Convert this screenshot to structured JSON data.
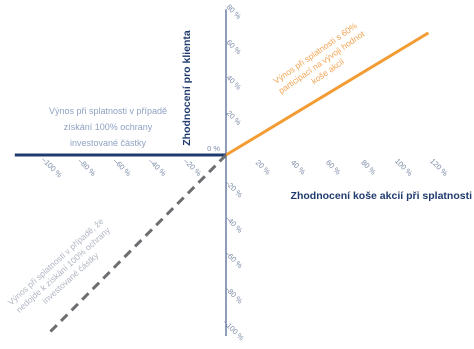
{
  "chart_data": {
    "type": "line",
    "xlabel": "Zhodnocení koše akcií při splatnosti",
    "ylabel": "Zhodnocení pro klienta",
    "xlim": [
      -120,
      120
    ],
    "ylim": [
      -100,
      80
    ],
    "x_ticks": [
      "–100 %",
      "–80 %",
      "–60 %",
      "–40 %",
      "–20 %",
      "20 %",
      "40 %",
      "60 %",
      "80 %",
      "100 %",
      "120 %"
    ],
    "y_ticks": [
      "80 %",
      "60 %",
      "40 %",
      "20 %",
      "0 %",
      "–20 %",
      "–40 %",
      "–60 %",
      "–80 %",
      "–100 %"
    ],
    "x_tick_values": [
      -100,
      -80,
      -60,
      -40,
      -20,
      20,
      40,
      60,
      80,
      100,
      120
    ],
    "y_tick_values": [
      80,
      60,
      40,
      20,
      0,
      -20,
      -40,
      -60,
      -80,
      -100
    ],
    "series": [
      {
        "color": "#f39c33",
        "style": "solid",
        "x": [
          0,
          115
        ],
        "y": [
          0,
          69
        ]
      },
      {
        "color": "#1f3b6e",
        "style": "solid",
        "x": [
          -120,
          0
        ],
        "y": [
          0,
          0
        ]
      },
      {
        "color": "#6d6e71",
        "style": "dashed",
        "x": [
          0,
          -100
        ],
        "y": [
          0,
          -100
        ]
      }
    ],
    "annotations": [
      {
        "lines": [
          "Výnos při splatnosti s 60%",
          "participací na vývoji hodnot",
          "koše akcií"
        ],
        "color": "#f2a454"
      },
      {
        "lines": [
          "Výnos při splatnosti v případě",
          "získání 100% ochrany",
          "investované částky"
        ],
        "color": "#8fa2c2"
      },
      {
        "lines": [
          "Výnos při splatnosti v případě, že",
          "nedojde k získání 100% ochrany",
          "investované částky"
        ],
        "color": "#b0b6c2"
      }
    ]
  }
}
